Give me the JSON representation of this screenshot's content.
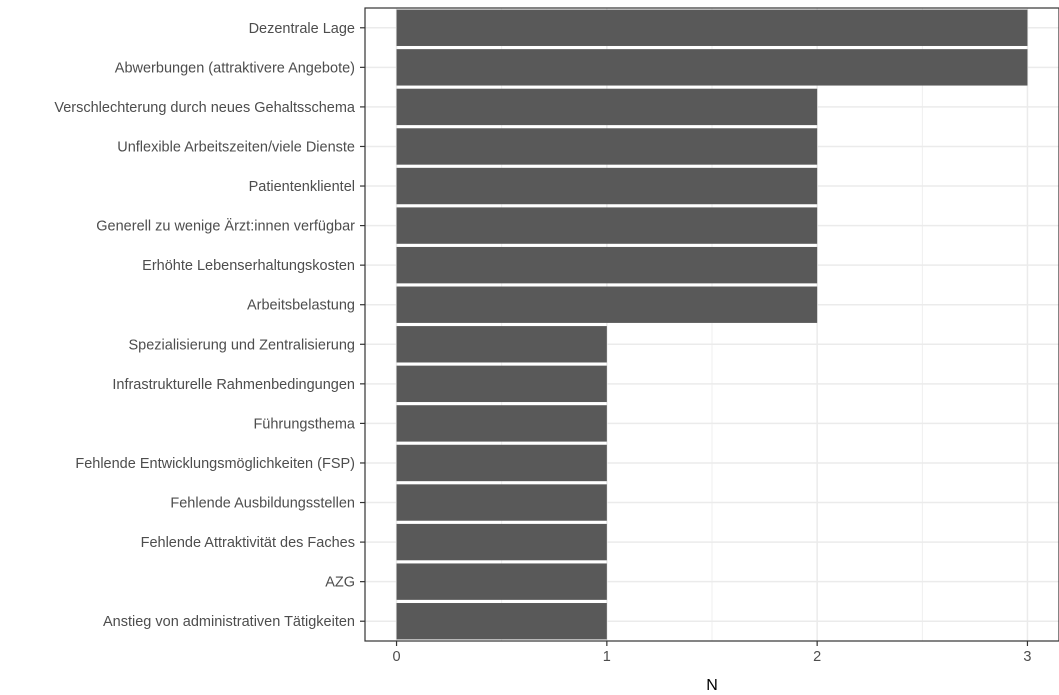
{
  "chart_data": {
    "type": "bar",
    "orientation": "horizontal",
    "categories": [
      "Dezentrale Lage",
      "Abwerbungen (attraktivere Angebote)",
      "Verschlechterung durch neues Gehaltsschema",
      "Unflexible Arbeitszeiten/viele Dienste",
      "Patientenklientel",
      "Generell zu wenige Ärzt:innen verfügbar",
      "Erhöhte Lebenserhaltungskosten",
      "Arbeitsbelastung",
      "Spezialisierung und Zentralisierung",
      "Infrastrukturelle Rahmenbedingungen",
      "Führungsthema",
      "Fehlende Entwicklungsmöglichkeiten (FSP)",
      "Fehlende Ausbildungsstellen",
      "Fehlende Attraktivität des Faches",
      "AZG",
      "Anstieg von administrativen Tätigkeiten"
    ],
    "values": [
      3,
      3,
      2,
      2,
      2,
      2,
      2,
      2,
      1,
      1,
      1,
      1,
      1,
      1,
      1,
      1
    ],
    "title": "",
    "xlabel": "N",
    "ylabel": "",
    "xlim": [
      -0.15,
      3.15
    ],
    "xticks": [
      "0",
      "1",
      "2",
      "3"
    ],
    "grid": true,
    "legend": "none",
    "bar_color": "#595959",
    "grid_color": "#ebebeb",
    "axis_color": "#333333"
  }
}
